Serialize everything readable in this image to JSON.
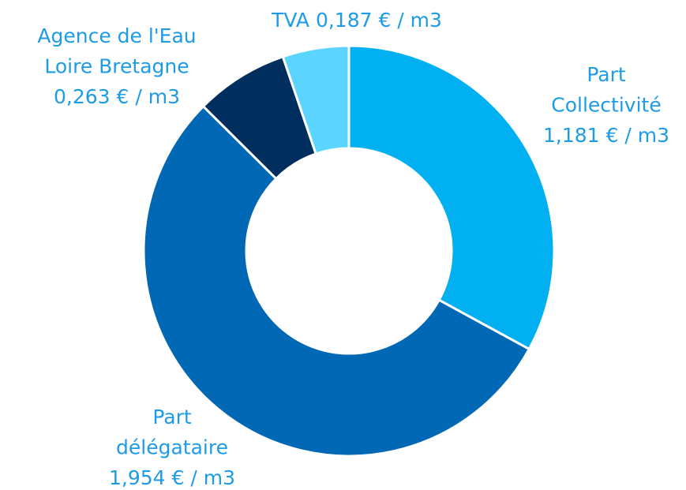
{
  "chart_data": {
    "type": "donut",
    "categories": [
      [
        "Part",
        "Collectivité"
      ],
      [
        "Part",
        "délégataire"
      ],
      [
        "Agence de l'Eau",
        "Loire Bretagne"
      ],
      [
        "TVA"
      ]
    ],
    "values": [
      1.181,
      1.954,
      0.263,
      0.187
    ],
    "value_labels": [
      "1,181 €  / m3",
      "1,954 €  / m3",
      "0,263 €  / m3",
      "0,187 €  / m3"
    ],
    "colors": [
      "#00b0f0",
      "#0068b4",
      "#002f5f",
      "#5bd5ff"
    ]
  }
}
